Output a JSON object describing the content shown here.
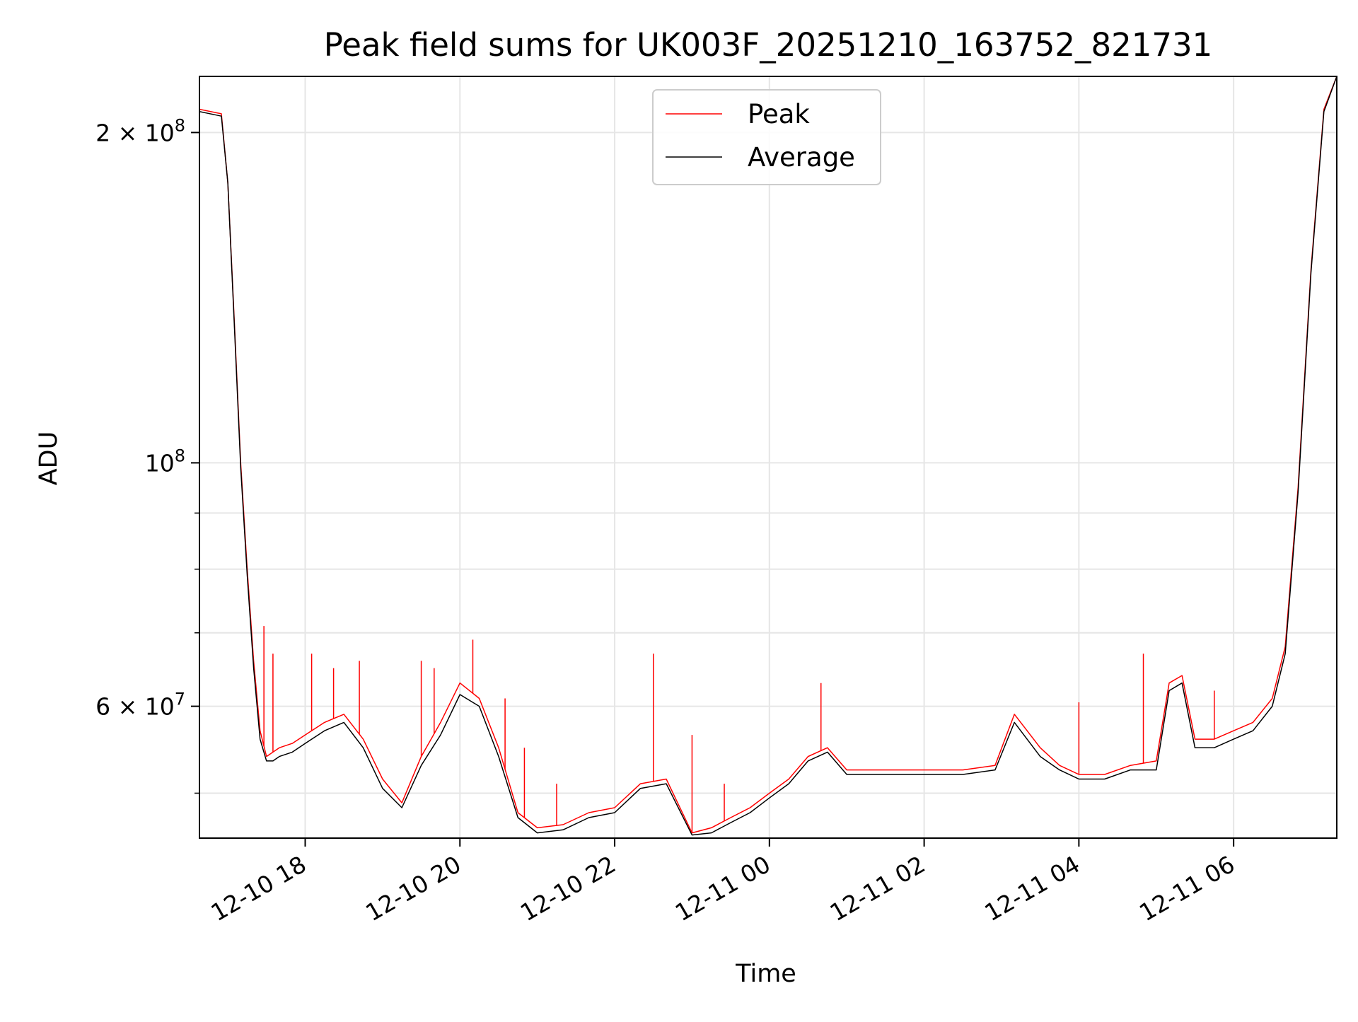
{
  "chart_data": {
    "type": "line",
    "title": "Peak field sums for UK003F_20251210_163752_821731",
    "xlabel": "Time",
    "ylabel": "ADU",
    "y_scale": "log",
    "xlim": [
      "2025-12-10T16:38",
      "2025-12-11T07:20"
    ],
    "ylim": [
      45500000,
      225000000
    ],
    "x_ticks": [
      {
        "value": "2025-12-10T18:00",
        "label": "12-10 18"
      },
      {
        "value": "2025-12-10T20:00",
        "label": "12-10 20"
      },
      {
        "value": "2025-12-10T22:00",
        "label": "12-10 22"
      },
      {
        "value": "2025-12-11T00:00",
        "label": "12-11 00"
      },
      {
        "value": "2025-12-11T02:00",
        "label": "12-11 02"
      },
      {
        "value": "2025-12-11T04:00",
        "label": "12-11 04"
      },
      {
        "value": "2025-12-11T06:00",
        "label": "12-11 06"
      }
    ],
    "y_ticks_major": [
      {
        "value": 200000000,
        "mant": "2 × 10",
        "exp": "8"
      },
      {
        "value": 100000000,
        "mant": "10",
        "exp": "8"
      },
      {
        "value": 60000000,
        "mant": "6 × 10",
        "exp": "7"
      }
    ],
    "y_ticks_minor": [
      50000000,
      70000000,
      80000000,
      90000000
    ],
    "grid": true,
    "legend_position": "top-center",
    "series": [
      {
        "name": "Peak",
        "color": "#ff0000",
        "x": [
          "2025-12-10T16:38",
          "2025-12-10T16:55",
          "2025-12-10T17:00",
          "2025-12-10T17:05",
          "2025-12-10T17:10",
          "2025-12-10T17:15",
          "2025-12-10T17:20",
          "2025-12-10T17:25",
          "2025-12-10T17:30",
          "2025-12-10T17:35",
          "2025-12-10T17:40",
          "2025-12-10T17:50",
          "2025-12-10T18:00",
          "2025-12-10T18:15",
          "2025-12-10T18:30",
          "2025-12-10T18:45",
          "2025-12-10T19:00",
          "2025-12-10T19:15",
          "2025-12-10T19:30",
          "2025-12-10T19:45",
          "2025-12-10T20:00",
          "2025-12-10T20:15",
          "2025-12-10T20:30",
          "2025-12-10T20:45",
          "2025-12-10T21:00",
          "2025-12-10T21:20",
          "2025-12-10T21:40",
          "2025-12-10T22:00",
          "2025-12-10T22:20",
          "2025-12-10T22:40",
          "2025-12-10T23:00",
          "2025-12-10T23:15",
          "2025-12-10T23:30",
          "2025-12-10T23:45",
          "2025-12-11T00:00",
          "2025-12-11T00:15",
          "2025-12-11T00:30",
          "2025-12-11T00:45",
          "2025-12-11T01:00",
          "2025-12-11T01:30",
          "2025-12-11T02:00",
          "2025-12-11T02:30",
          "2025-12-11T02:55",
          "2025-12-11T03:10",
          "2025-12-11T03:30",
          "2025-12-11T03:45",
          "2025-12-11T04:00",
          "2025-12-11T04:20",
          "2025-12-11T04:40",
          "2025-12-11T05:00",
          "2025-12-11T05:10",
          "2025-12-11T05:20",
          "2025-12-11T05:30",
          "2025-12-11T05:45",
          "2025-12-11T06:00",
          "2025-12-11T06:15",
          "2025-12-11T06:30",
          "2025-12-11T06:40",
          "2025-12-11T06:50",
          "2025-12-11T07:00",
          "2025-12-11T07:10",
          "2025-12-11T07:20"
        ],
        "y": [
          210000000,
          208000000,
          180000000,
          135000000,
          100000000,
          80000000,
          66000000,
          57000000,
          54000000,
          54500000,
          55000000,
          55500000,
          56500000,
          58000000,
          59000000,
          56000000,
          51500000,
          49000000,
          54000000,
          58000000,
          63000000,
          61000000,
          55000000,
          48000000,
          46500000,
          46800000,
          48000000,
          48500000,
          51000000,
          51500000,
          46000000,
          46500000,
          47500000,
          48500000,
          50000000,
          51500000,
          54000000,
          55000000,
          52500000,
          52500000,
          52500000,
          52500000,
          53000000,
          59000000,
          55000000,
          53000000,
          52000000,
          52000000,
          53000000,
          53500000,
          63000000,
          64000000,
          56000000,
          56000000,
          57000000,
          58000000,
          61000000,
          68000000,
          95000000,
          150000000,
          210000000,
          225000000
        ],
        "spikes": [
          {
            "x": "2025-12-10T17:28",
            "y": 71000000
          },
          {
            "x": "2025-12-10T17:35",
            "y": 67000000
          },
          {
            "x": "2025-12-10T18:05",
            "y": 67000000
          },
          {
            "x": "2025-12-10T18:22",
            "y": 65000000
          },
          {
            "x": "2025-12-10T18:42",
            "y": 66000000
          },
          {
            "x": "2025-12-10T19:30",
            "y": 66000000
          },
          {
            "x": "2025-12-10T19:40",
            "y": 65000000
          },
          {
            "x": "2025-12-10T20:10",
            "y": 69000000
          },
          {
            "x": "2025-12-10T20:35",
            "y": 61000000
          },
          {
            "x": "2025-12-10T20:50",
            "y": 55000000
          },
          {
            "x": "2025-12-10T21:15",
            "y": 51000000
          },
          {
            "x": "2025-12-10T22:30",
            "y": 67000000
          },
          {
            "x": "2025-12-10T23:00",
            "y": 56500000
          },
          {
            "x": "2025-12-10T23:25",
            "y": 51000000
          },
          {
            "x": "2025-12-11T00:40",
            "y": 63000000
          },
          {
            "x": "2025-12-11T04:00",
            "y": 60500000
          },
          {
            "x": "2025-12-11T04:50",
            "y": 67000000
          },
          {
            "x": "2025-12-11T05:45",
            "y": 62000000
          }
        ]
      },
      {
        "name": "Average",
        "color": "#000000",
        "x": [
          "2025-12-10T16:38",
          "2025-12-10T16:55",
          "2025-12-10T17:00",
          "2025-12-10T17:05",
          "2025-12-10T17:10",
          "2025-12-10T17:15",
          "2025-12-10T17:20",
          "2025-12-10T17:25",
          "2025-12-10T17:30",
          "2025-12-10T17:35",
          "2025-12-10T17:40",
          "2025-12-10T17:50",
          "2025-12-10T18:00",
          "2025-12-10T18:15",
          "2025-12-10T18:30",
          "2025-12-10T18:45",
          "2025-12-10T19:00",
          "2025-12-10T19:15",
          "2025-12-10T19:30",
          "2025-12-10T19:45",
          "2025-12-10T20:00",
          "2025-12-10T20:15",
          "2025-12-10T20:30",
          "2025-12-10T20:45",
          "2025-12-10T21:00",
          "2025-12-10T21:20",
          "2025-12-10T21:40",
          "2025-12-10T22:00",
          "2025-12-10T22:20",
          "2025-12-10T22:40",
          "2025-12-10T23:00",
          "2025-12-10T23:15",
          "2025-12-10T23:30",
          "2025-12-10T23:45",
          "2025-12-11T00:00",
          "2025-12-11T00:15",
          "2025-12-11T00:30",
          "2025-12-11T00:45",
          "2025-12-11T01:00",
          "2025-12-11T01:30",
          "2025-12-11T02:00",
          "2025-12-11T02:30",
          "2025-12-11T02:55",
          "2025-12-11T03:10",
          "2025-12-11T03:30",
          "2025-12-11T03:45",
          "2025-12-11T04:00",
          "2025-12-11T04:20",
          "2025-12-11T04:40",
          "2025-12-11T05:00",
          "2025-12-11T05:10",
          "2025-12-11T05:20",
          "2025-12-11T05:30",
          "2025-12-11T05:45",
          "2025-12-11T06:00",
          "2025-12-11T06:15",
          "2025-12-11T06:30",
          "2025-12-11T06:40",
          "2025-12-11T06:50",
          "2025-12-11T07:00",
          "2025-12-11T07:10",
          "2025-12-11T07:20"
        ],
        "y": [
          209000000,
          207000000,
          180000000,
          134000000,
          99000000,
          79000000,
          65000000,
          56000000,
          53500000,
          53500000,
          54000000,
          54500000,
          55500000,
          57000000,
          58000000,
          55000000,
          50500000,
          48500000,
          53000000,
          56500000,
          61500000,
          60000000,
          54000000,
          47500000,
          46000000,
          46300000,
          47500000,
          48000000,
          50500000,
          51000000,
          45800000,
          46000000,
          47000000,
          48000000,
          49500000,
          51000000,
          53500000,
          54500000,
          52000000,
          52000000,
          52000000,
          52000000,
          52500000,
          58000000,
          54000000,
          52500000,
          51500000,
          51500000,
          52500000,
          52500000,
          62000000,
          63000000,
          55000000,
          55000000,
          56000000,
          57000000,
          60000000,
          67000000,
          94000000,
          149000000,
          209000000,
          225000000
        ]
      }
    ]
  }
}
